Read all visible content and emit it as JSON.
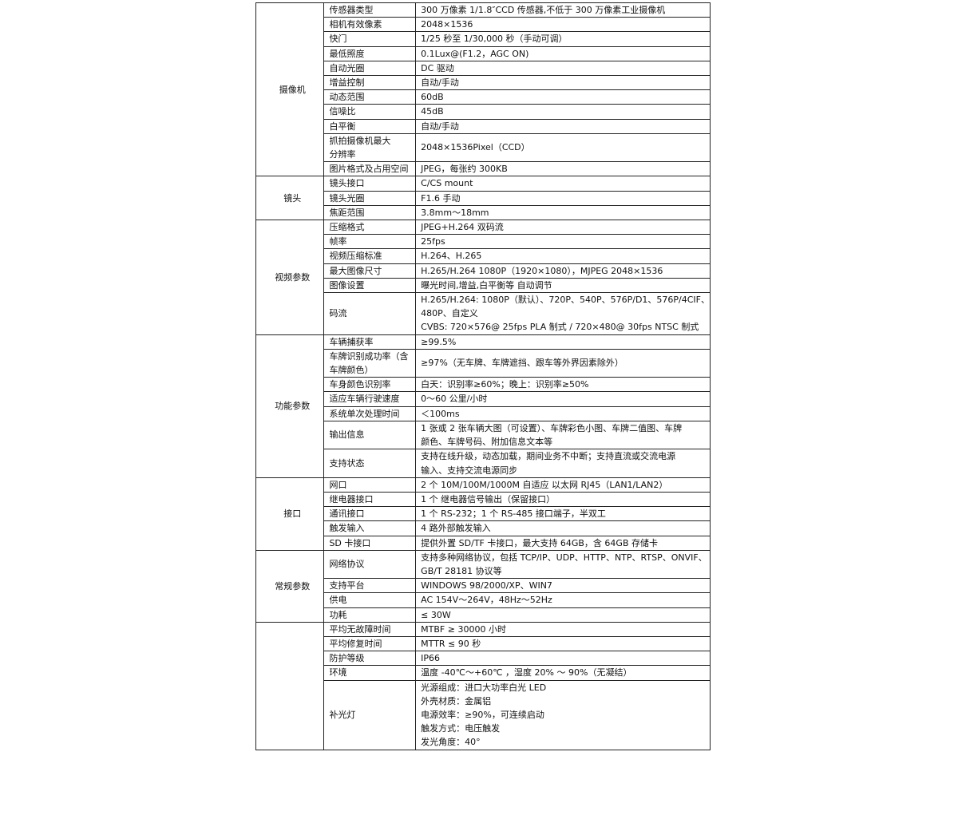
{
  "groups": [
    {
      "label": "摄像机",
      "rows": [
        {
          "param": [
            "传感器类型"
          ],
          "value": [
            "300 万像素 1/1.8″CCD 传感器,不低于 300 万像素工业摄像机"
          ]
        },
        {
          "param": [
            "相机有效像素"
          ],
          "value": [
            "2048×1536"
          ]
        },
        {
          "param": [
            "快门"
          ],
          "value": [
            "1/25 秒至 1/30,000 秒（手动可调）"
          ]
        },
        {
          "param": [
            "最低照度"
          ],
          "value": [
            "0.1Lux@(F1.2，AGC ON)"
          ]
        },
        {
          "param": [
            "自动光圈"
          ],
          "value": [
            "DC 驱动"
          ]
        },
        {
          "param": [
            "增益控制"
          ],
          "value": [
            "自动/手动"
          ]
        },
        {
          "param": [
            "动态范围"
          ],
          "value": [
            "60dB"
          ]
        },
        {
          "param": [
            "信噪比"
          ],
          "value": [
            "45dB"
          ]
        },
        {
          "param": [
            "白平衡"
          ],
          "value": [
            "自动/手动"
          ]
        },
        {
          "param": [
            "抓拍摄像机最大",
            "分辨率"
          ],
          "value": [
            "2048×1536Pixel（CCD）"
          ]
        },
        {
          "param": [
            "图片格式及占用空间"
          ],
          "value": [
            "JPEG，每张约 300KB"
          ]
        }
      ]
    },
    {
      "label": "镜头",
      "rows": [
        {
          "param": [
            "镜头接口"
          ],
          "value": [
            "C/CS mount"
          ]
        },
        {
          "param": [
            "镜头光圈"
          ],
          "value": [
            "F1.6  手动"
          ]
        },
        {
          "param": [
            "焦距范围"
          ],
          "value": [
            "3.8mm～18mm"
          ]
        }
      ]
    },
    {
      "label": "视频参数",
      "rows": [
        {
          "param": [
            "压缩格式"
          ],
          "value": [
            "JPEG+H.264 双码流"
          ]
        },
        {
          "param": [
            "帧率"
          ],
          "value": [
            "25fps"
          ]
        },
        {
          "param": [
            "视频压缩标准"
          ],
          "value": [
            "H.264、H.265"
          ]
        },
        {
          "param": [
            "最大图像尺寸"
          ],
          "value": [
            "H.265/H.264 1080P（1920×1080），MJPEG 2048×1536"
          ]
        },
        {
          "param": [
            "图像设置"
          ],
          "value": [
            "曝光时间,增益,白平衡等 自动调节"
          ]
        },
        {
          "param": [
            "码流"
          ],
          "value": [
            "H.265/H.264: 1080P（默认）、720P、540P、576P/D1、576P/4CIF、",
            "480P、自定义",
            "CVBS:  720×576@ 25fps PLA 制式 / 720×480@ 30fps NTSC 制式"
          ]
        }
      ]
    },
    {
      "label": "功能参数",
      "rows": [
        {
          "param": [
            "车辆捕获率"
          ],
          "value": [
            "≥99.5%"
          ]
        },
        {
          "param": [
            "车牌识别成功率（含",
            "车牌颜色）"
          ],
          "value": [
            "≥97%（无车牌、车牌遮挡、跟车等外界因素除外）"
          ]
        },
        {
          "param": [
            "车身颜色识别率"
          ],
          "value": [
            "白天：识别率≥60%；晚上：识别率≥50%"
          ]
        },
        {
          "param": [
            "适应车辆行驶速度"
          ],
          "value": [
            "0～60 公里/小时"
          ]
        },
        {
          "param": [
            "系统单次处理时间"
          ],
          "value": [
            "＜100ms"
          ]
        },
        {
          "param": [
            "输出信息"
          ],
          "value": [
            "1 张或 2 张车辆大图（可设置）、车牌彩色小图、车牌二值图、车牌",
            "颜色、车牌号码、附加信息文本等"
          ]
        },
        {
          "param": [
            "支持状态"
          ],
          "value": [
            "支持在线升级，动态加载，期间业务不中断；支持直流或交流电源",
            "输入、支持交流电源同步"
          ]
        }
      ]
    },
    {
      "label": "接口",
      "rows": [
        {
          "param": [
            "网口"
          ],
          "value": [
            "2 个 10M/100M/1000M 自适应 以太网 RJ45（LAN1/LAN2）"
          ]
        },
        {
          "param": [
            "继电器接口"
          ],
          "value": [
            "1 个 继电器信号输出（保留接口）"
          ]
        },
        {
          "param": [
            "通讯接口"
          ],
          "value": [
            "1 个 RS-232；1 个 RS-485 接口端子，半双工"
          ]
        },
        {
          "param": [
            "触发输入"
          ],
          "value": [
            "4 路外部触发输入"
          ]
        },
        {
          "param": [
            "SD 卡接口"
          ],
          "value": [
            "提供外置 SD/TF 卡接口，最大支持 64GB，含 64GB 存储卡"
          ]
        }
      ]
    },
    {
      "label": "常规参数",
      "rows": [
        {
          "param": [
            "网络协议"
          ],
          "value": [
            "支持多种网络协议，包括 TCP/IP、UDP、HTTP、NTP、RTSP、ONVIF、",
            "GB/T 28181 协议等"
          ]
        },
        {
          "param": [
            "支持平台"
          ],
          "value": [
            "WINDOWS 98/2000/XP、WIN7"
          ]
        },
        {
          "param": [
            "供电"
          ],
          "value": [
            "AC 154V～264V，48Hz～52Hz"
          ]
        },
        {
          "param": [
            "功耗"
          ],
          "value": [
            "≤ 30W"
          ]
        }
      ]
    },
    {
      "label": "",
      "rows": [
        {
          "param": [
            "平均无故障时间"
          ],
          "value": [
            "MTBF ≥ 30000 小时"
          ]
        },
        {
          "param": [
            "平均修复时间"
          ],
          "value": [
            "MTTR ≤ 90 秒"
          ]
        },
        {
          "param": [
            "防护等级"
          ],
          "value": [
            "IP66"
          ]
        },
        {
          "param": [
            "环境"
          ],
          "value": [
            "温度 -40℃～+60℃ ，湿度 20% ～ 90%（无凝结）"
          ]
        },
        {
          "param": [
            "补光灯"
          ],
          "value": [
            "光源组成：进口大功率白光 LED",
            "外壳材质：金属铝",
            "电源效率：≥90%，可连续启动",
            "触发方式：电压触发",
            "发光角度：40°"
          ]
        }
      ]
    }
  ]
}
